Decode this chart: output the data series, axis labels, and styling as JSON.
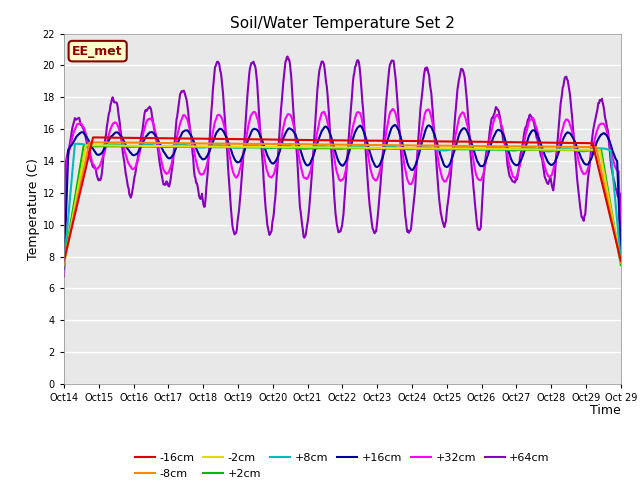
{
  "title": "Soil/Water Temperature Set 2",
  "xlabel": "Time",
  "ylabel": "Temperature (C)",
  "ylim": [
    0,
    22
  ],
  "yticks": [
    0,
    2,
    4,
    6,
    8,
    10,
    12,
    14,
    16,
    18,
    20,
    22
  ],
  "xlabels": [
    "Oct 14",
    "Oct 15",
    "Oct 16",
    "Oct 17",
    "Oct 18",
    "Oct 19",
    "Oct 20",
    "Oct 21",
    "Oct 22",
    "Oct 23",
    "Oct 24",
    "Oct 25",
    "Oct 26",
    "Oct 27",
    "Oct 28",
    "Oct 29"
  ],
  "series": {
    "-16cm": {
      "color": "#dd0000",
      "lw": 1.5
    },
    "-8cm": {
      "color": "#ff8800",
      "lw": 1.5
    },
    "-2cm": {
      "color": "#dddd00",
      "lw": 1.5
    },
    "+2cm": {
      "color": "#00bb00",
      "lw": 1.5
    },
    "+8cm": {
      "color": "#00bbbb",
      "lw": 1.5
    },
    "+16cm": {
      "color": "#000099",
      "lw": 1.5
    },
    "+32cm": {
      "color": "#ff00ff",
      "lw": 1.5
    },
    "+64cm": {
      "color": "#8800bb",
      "lw": 1.5
    }
  },
  "annotation_text": "EE_met",
  "annotation_color": "#8B0000",
  "fig_bg_color": "#ffffff",
  "plot_bg_color": "#e8e8e8"
}
